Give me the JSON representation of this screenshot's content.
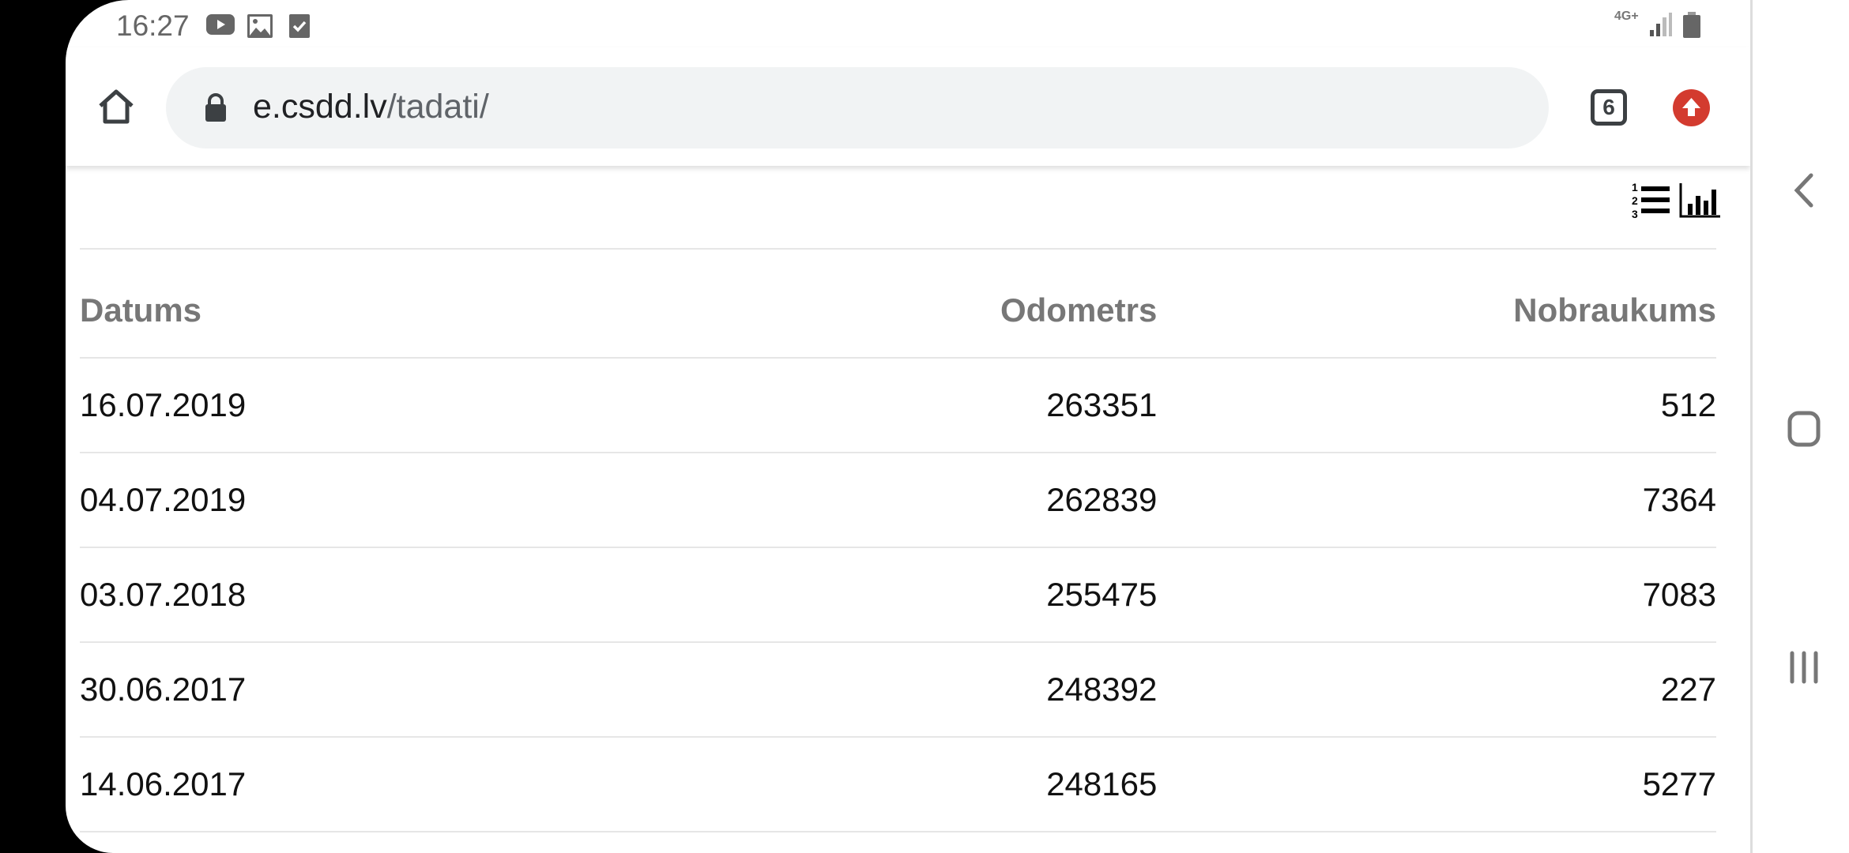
{
  "status_bar": {
    "time": "16:27",
    "network": "4G+"
  },
  "browser": {
    "url_host": "e.csdd.lv",
    "url_path": "/tadati/",
    "tab_count": "6",
    "accent": "#d33b2f"
  },
  "table": {
    "headers": [
      "Datums",
      "Odometrs",
      "Nobraukums"
    ],
    "rows": [
      [
        "16.07.2019",
        "263351",
        "512"
      ],
      [
        "04.07.2019",
        "262839",
        "7364"
      ],
      [
        "03.07.2018",
        "255475",
        "7083"
      ],
      [
        "30.06.2017",
        "248392",
        "227"
      ],
      [
        "14.06.2017",
        "248165",
        "5277"
      ]
    ]
  },
  "view_icons": [
    "numbered-list-icon",
    "bar-chart-icon"
  ],
  "nav": [
    "back-icon",
    "home-icon",
    "recents-icon"
  ]
}
